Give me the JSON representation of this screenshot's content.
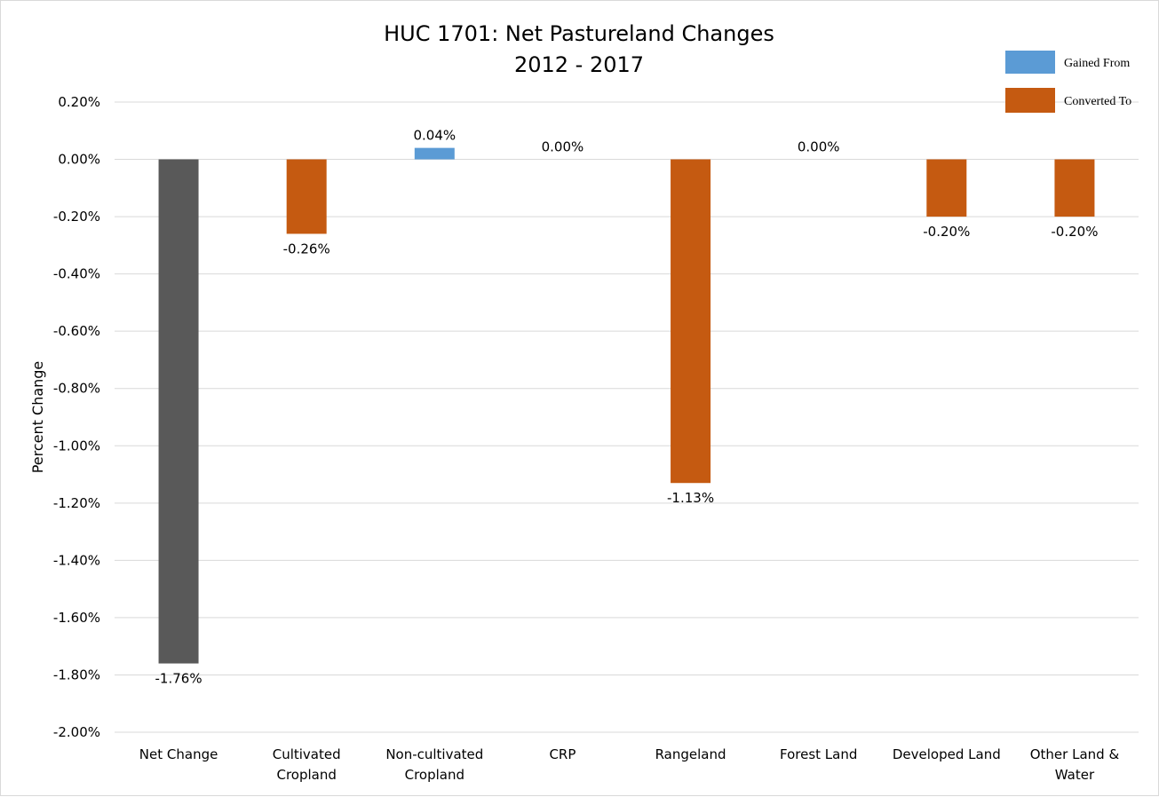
{
  "colors": {
    "net": "#595959",
    "gained": "#5b9bd5",
    "converted": "#c55a11",
    "grid": "#d9d9d9"
  },
  "chart_data": {
    "type": "bar",
    "title": "HUC 1701: Net Pastureland Changes",
    "subtitle": "2012 - 2017",
    "ylabel": "Percent Change",
    "xlabel": "",
    "ylim": [
      -2.0,
      0.2
    ],
    "ytick_step": 0.2,
    "yticks": [
      "0.20%",
      "0.00%",
      "-0.20%",
      "-0.40%",
      "-0.60%",
      "-0.80%",
      "-1.00%",
      "-1.20%",
      "-1.40%",
      "-1.60%",
      "-1.80%",
      "-2.00%"
    ],
    "grid": true,
    "legend_position": "top-right",
    "legend": [
      {
        "label": "Gained From",
        "color": "#5b9bd5"
      },
      {
        "label": "Converted To",
        "color": "#c55a11"
      }
    ],
    "categories": [
      [
        "Net Change"
      ],
      [
        "Cultivated",
        "Cropland"
      ],
      [
        "Non-cultivated",
        "Cropland"
      ],
      [
        "CRP"
      ],
      [
        "Rangeland"
      ],
      [
        "Forest Land"
      ],
      [
        "Developed Land"
      ],
      [
        "Other Land &",
        "Water"
      ]
    ],
    "values": [
      -1.76,
      -0.26,
      0.04,
      0.0,
      -1.13,
      0.0,
      -0.2,
      -0.2
    ],
    "labels": [
      "-1.76%",
      "-0.26%",
      "0.04%",
      "0.00%",
      "-1.13%",
      "0.00%",
      "-0.20%",
      "-0.20%"
    ],
    "bar_kind": [
      "net",
      "converted",
      "gained",
      "gained",
      "converted",
      "gained",
      "converted",
      "converted"
    ]
  }
}
